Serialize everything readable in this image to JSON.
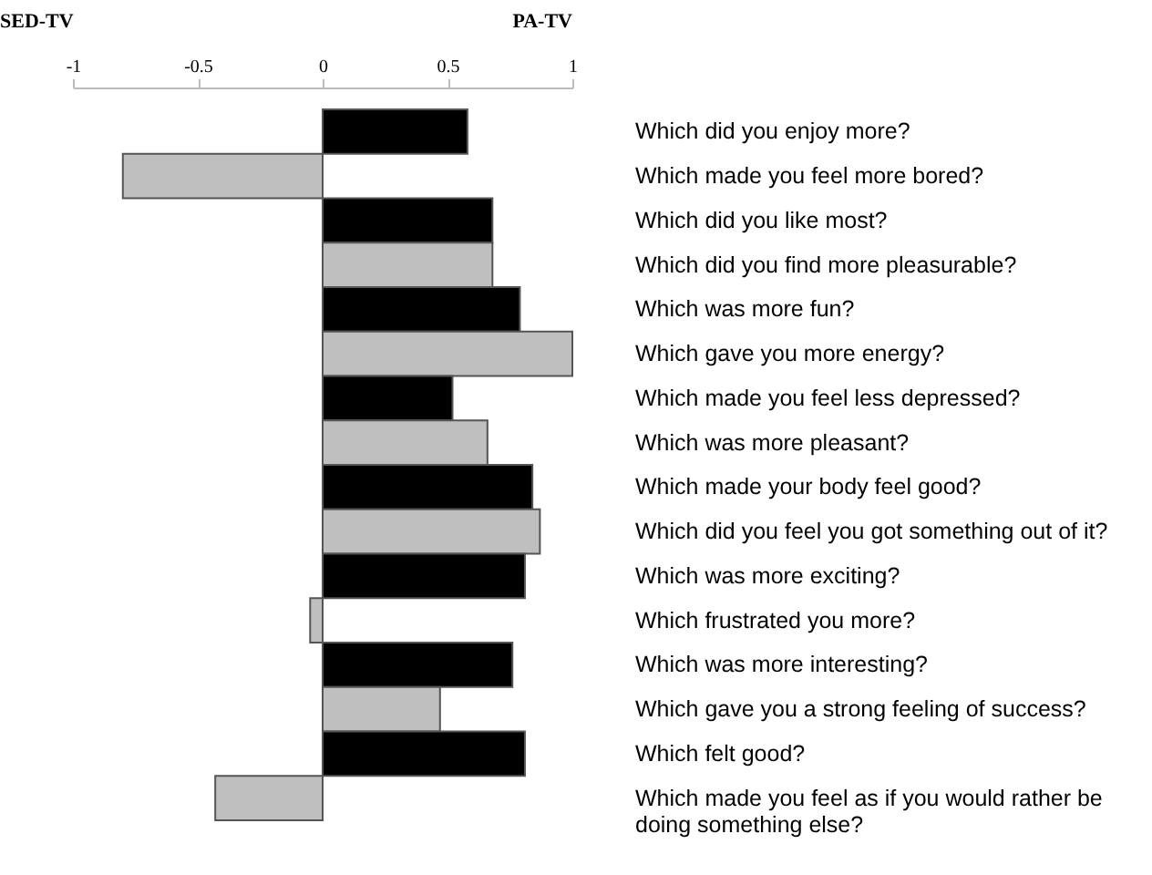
{
  "chart_data": {
    "type": "bar",
    "orientation": "horizontal",
    "categories": [
      "Which did you enjoy more?",
      "Which made you feel more bored?",
      "Which did you like most?",
      "Which did you find more pleasurable?",
      "Which was more fun?",
      "Which gave you more energy?",
      "Which made you feel less depressed?",
      "Which was more pleasant?",
      "Which made your body feel good?",
      "Which did you feel you got something out of it?",
      "Which was more exciting?",
      "Which frustrated you more?",
      "Which was more interesting?",
      "Which gave you a strong feeling of success?",
      "Which felt good?",
      "Which made you feel as if you would rather be doing something else?"
    ],
    "values": [
      0.58,
      -0.8,
      0.68,
      0.68,
      0.79,
      1.0,
      0.52,
      0.66,
      0.84,
      0.87,
      0.81,
      -0.05,
      0.76,
      0.47,
      0.81,
      -0.43
    ],
    "colors": [
      "#000000",
      "#bfbfbf",
      "#000000",
      "#bfbfbf",
      "#000000",
      "#bfbfbf",
      "#000000",
      "#bfbfbf",
      "#000000",
      "#bfbfbf",
      "#000000",
      "#bfbfbf",
      "#000000",
      "#bfbfbf",
      "#000000",
      "#bfbfbf"
    ],
    "xlim": [
      -1,
      1
    ],
    "xticks": [
      -1,
      -0.5,
      0,
      0.5,
      1
    ],
    "annotations": [
      "SED-TV",
      "PA-TV"
    ]
  }
}
